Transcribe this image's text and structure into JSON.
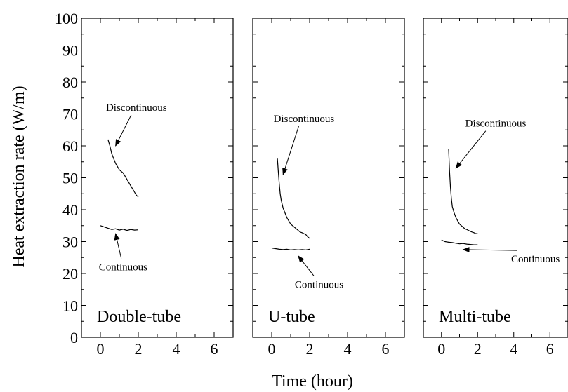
{
  "chart_data": {
    "type": "line",
    "ylabel": "Heat extraction rate (W/m)",
    "xlabel": "Time (hour)",
    "ylim": [
      0,
      100
    ],
    "xlim": [
      -1,
      7
    ],
    "yticks": [
      0,
      10,
      20,
      30,
      40,
      50,
      60,
      70,
      80,
      90,
      100
    ],
    "xticks": [
      0,
      2,
      4,
      6
    ],
    "grid": false,
    "panels": [
      {
        "label": "Double-tube",
        "series": [
          {
            "name": "Discontinuous",
            "x": [
              0.4,
              0.5,
              0.6,
              0.7,
              0.8,
              0.9,
              1.0,
              1.1,
              1.2,
              1.3,
              1.4,
              1.5,
              1.6,
              1.7,
              1.8,
              1.9,
              2.0
            ],
            "y": [
              62,
              60,
              57.5,
              56,
              54.5,
              53.5,
              52.5,
              52,
              51.5,
              50.5,
              49.5,
              48.5,
              47.5,
              46.5,
              45.5,
              44.5,
              44
            ]
          },
          {
            "name": "Continuous",
            "x": [
              0.0,
              0.2,
              0.4,
              0.6,
              0.8,
              1.0,
              1.2,
              1.4,
              1.6,
              1.8,
              2.0
            ],
            "y": [
              35,
              34.6,
              34.2,
              33.8,
              34,
              33.6,
              33.9,
              33.5,
              33.8,
              33.6,
              33.7
            ]
          }
        ],
        "annotations": [
          {
            "text": "Discontinuous",
            "x": 1.9,
            "y": 71,
            "arrow_x": 0.8,
            "arrow_y": 60
          },
          {
            "text": "Continuous",
            "x": 1.2,
            "y": 21,
            "arrow_x": 0.8,
            "arrow_y": 32.5
          }
        ]
      },
      {
        "label": "U-tube",
        "series": [
          {
            "name": "Discontinuous",
            "x": [
              0.3,
              0.35,
              0.4,
              0.45,
              0.5,
              0.6,
              0.7,
              0.8,
              0.9,
              1.0,
              1.1,
              1.2,
              1.3,
              1.4,
              1.5,
              1.6,
              1.7,
              1.8,
              1.9,
              2.0
            ],
            "y": [
              56,
              52,
              48,
              45,
              43,
              40.5,
              39,
              37.5,
              36.5,
              35.5,
              35,
              34.5,
              34,
              33.5,
              33,
              32.8,
              32.5,
              32.2,
              31.5,
              31
            ]
          },
          {
            "name": "Continuous",
            "x": [
              0.0,
              0.2,
              0.4,
              0.6,
              0.8,
              1.0,
              1.2,
              1.4,
              1.6,
              1.8,
              2.0
            ],
            "y": [
              28,
              27.8,
              27.6,
              27.5,
              27.6,
              27.4,
              27.5,
              27.4,
              27.5,
              27.4,
              27.6
            ]
          }
        ],
        "annotations": [
          {
            "text": "Discontinuous",
            "x": 1.7,
            "y": 67.5,
            "arrow_x": 0.6,
            "arrow_y": 51
          },
          {
            "text": "Continuous",
            "x": 2.5,
            "y": 15.5,
            "arrow_x": 1.4,
            "arrow_y": 25.5
          }
        ]
      },
      {
        "label": "Multi-tube",
        "series": [
          {
            "name": "Discontinuous",
            "x": [
              0.4,
              0.45,
              0.5,
              0.55,
              0.6,
              0.7,
              0.8,
              0.9,
              1.0,
              1.1,
              1.2,
              1.3,
              1.4,
              1.5,
              1.6,
              1.7,
              1.8,
              1.9,
              2.0
            ],
            "y": [
              59,
              52,
              47,
              43.5,
              41,
              39,
              37.5,
              36.5,
              35.5,
              35,
              34.5,
              34,
              33.8,
              33.5,
              33.2,
              33,
              32.8,
              32.5,
              32.5
            ]
          },
          {
            "name": "Continuous",
            "x": [
              0.0,
              0.2,
              0.4,
              0.6,
              0.8,
              1.0,
              1.2,
              1.4,
              1.6,
              1.8,
              2.0
            ],
            "y": [
              30.5,
              30,
              29.8,
              29.7,
              29.5,
              29.3,
              29.4,
              29.2,
              29.1,
              29,
              29
            ]
          }
        ],
        "annotations": [
          {
            "text": "Discontinuous",
            "x": 3.0,
            "y": 66,
            "arrow_x": 0.8,
            "arrow_y": 53
          },
          {
            "text": "Continuous",
            "x": 5.2,
            "y": 23.5,
            "arrow_x": 1.2,
            "arrow_y": 27.5
          }
        ]
      }
    ]
  }
}
